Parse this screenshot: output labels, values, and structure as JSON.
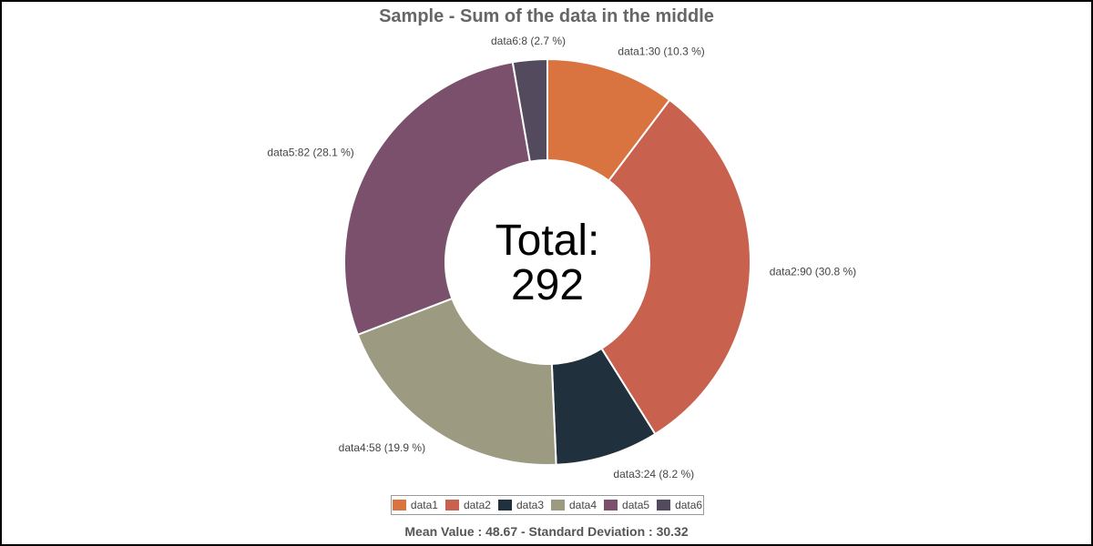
{
  "chart_data": {
    "type": "pie",
    "variant": "donut",
    "title": "Sample - Sum of the data in the middle",
    "center_text": [
      "Total:",
      "292"
    ],
    "footer": "Mean Value : 48.67 - Standard Deviation : 30.32",
    "legend_position": "bottom",
    "slices": [
      {
        "name": "data1",
        "value": 30,
        "label": "data1:30 (10.3 %)",
        "color": "#d97441"
      },
      {
        "name": "data2",
        "value": 90,
        "label": "data2:90 (30.8 %)",
        "color": "#c8614d"
      },
      {
        "name": "data3",
        "value": 24,
        "label": "data3:24 (8.2 %)",
        "color": "#21303d"
      },
      {
        "name": "data4",
        "value": 58,
        "label": "data4:58 (19.9 %)",
        "color": "#9c9a80"
      },
      {
        "name": "data5",
        "value": 82,
        "label": "data5:82 (28.1 %)",
        "color": "#7b506c"
      },
      {
        "name": "data6",
        "value": 8,
        "label": "data6:8 (2.7 %)",
        "color": "#544a5e"
      }
    ]
  }
}
